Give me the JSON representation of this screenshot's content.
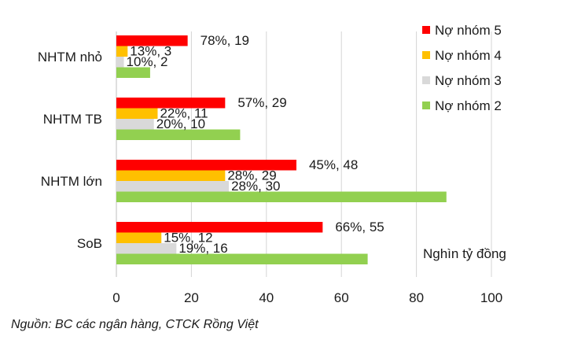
{
  "chart_data": {
    "type": "bar",
    "orientation": "horizontal",
    "categories": [
      "NHTM nhỏ",
      "NHTM TB",
      "NHTM lớn",
      "SoB"
    ],
    "series": [
      {
        "name": "Nợ nhóm 5",
        "color": "#ff0000",
        "values": [
          19,
          29,
          48,
          55
        ],
        "labels": [
          "78%, 19",
          "57%, 29",
          "45%, 48",
          "66%, 55"
        ]
      },
      {
        "name": "Nợ nhóm 4",
        "color": "#ffc000",
        "values": [
          3,
          11,
          29,
          12
        ],
        "labels": [
          "13%, 3",
          "22%, 11",
          "28%, 29",
          "15%, 12"
        ]
      },
      {
        "name": "Nợ nhóm 3",
        "color": "#d9d9d9",
        "values": [
          2,
          10,
          30,
          16
        ],
        "labels": [
          "10%, 2",
          "20%, 10",
          "28%, 30",
          "19%, 16"
        ]
      },
      {
        "name": "Nợ nhóm 2",
        "color": "#92d050",
        "values": [
          9,
          33,
          88,
          67
        ],
        "labels": [
          "",
          "",
          "",
          ""
        ]
      }
    ],
    "xlim": [
      0,
      100
    ],
    "xticks": [
      "0",
      "20",
      "40",
      "60",
      "80",
      "100"
    ],
    "grid": true,
    "legend": "top-right",
    "unit_label": "Nghìn tỷ đồng"
  },
  "footnote": "Nguồn: BC các ngân hàng, CTCK Rồng Việt"
}
